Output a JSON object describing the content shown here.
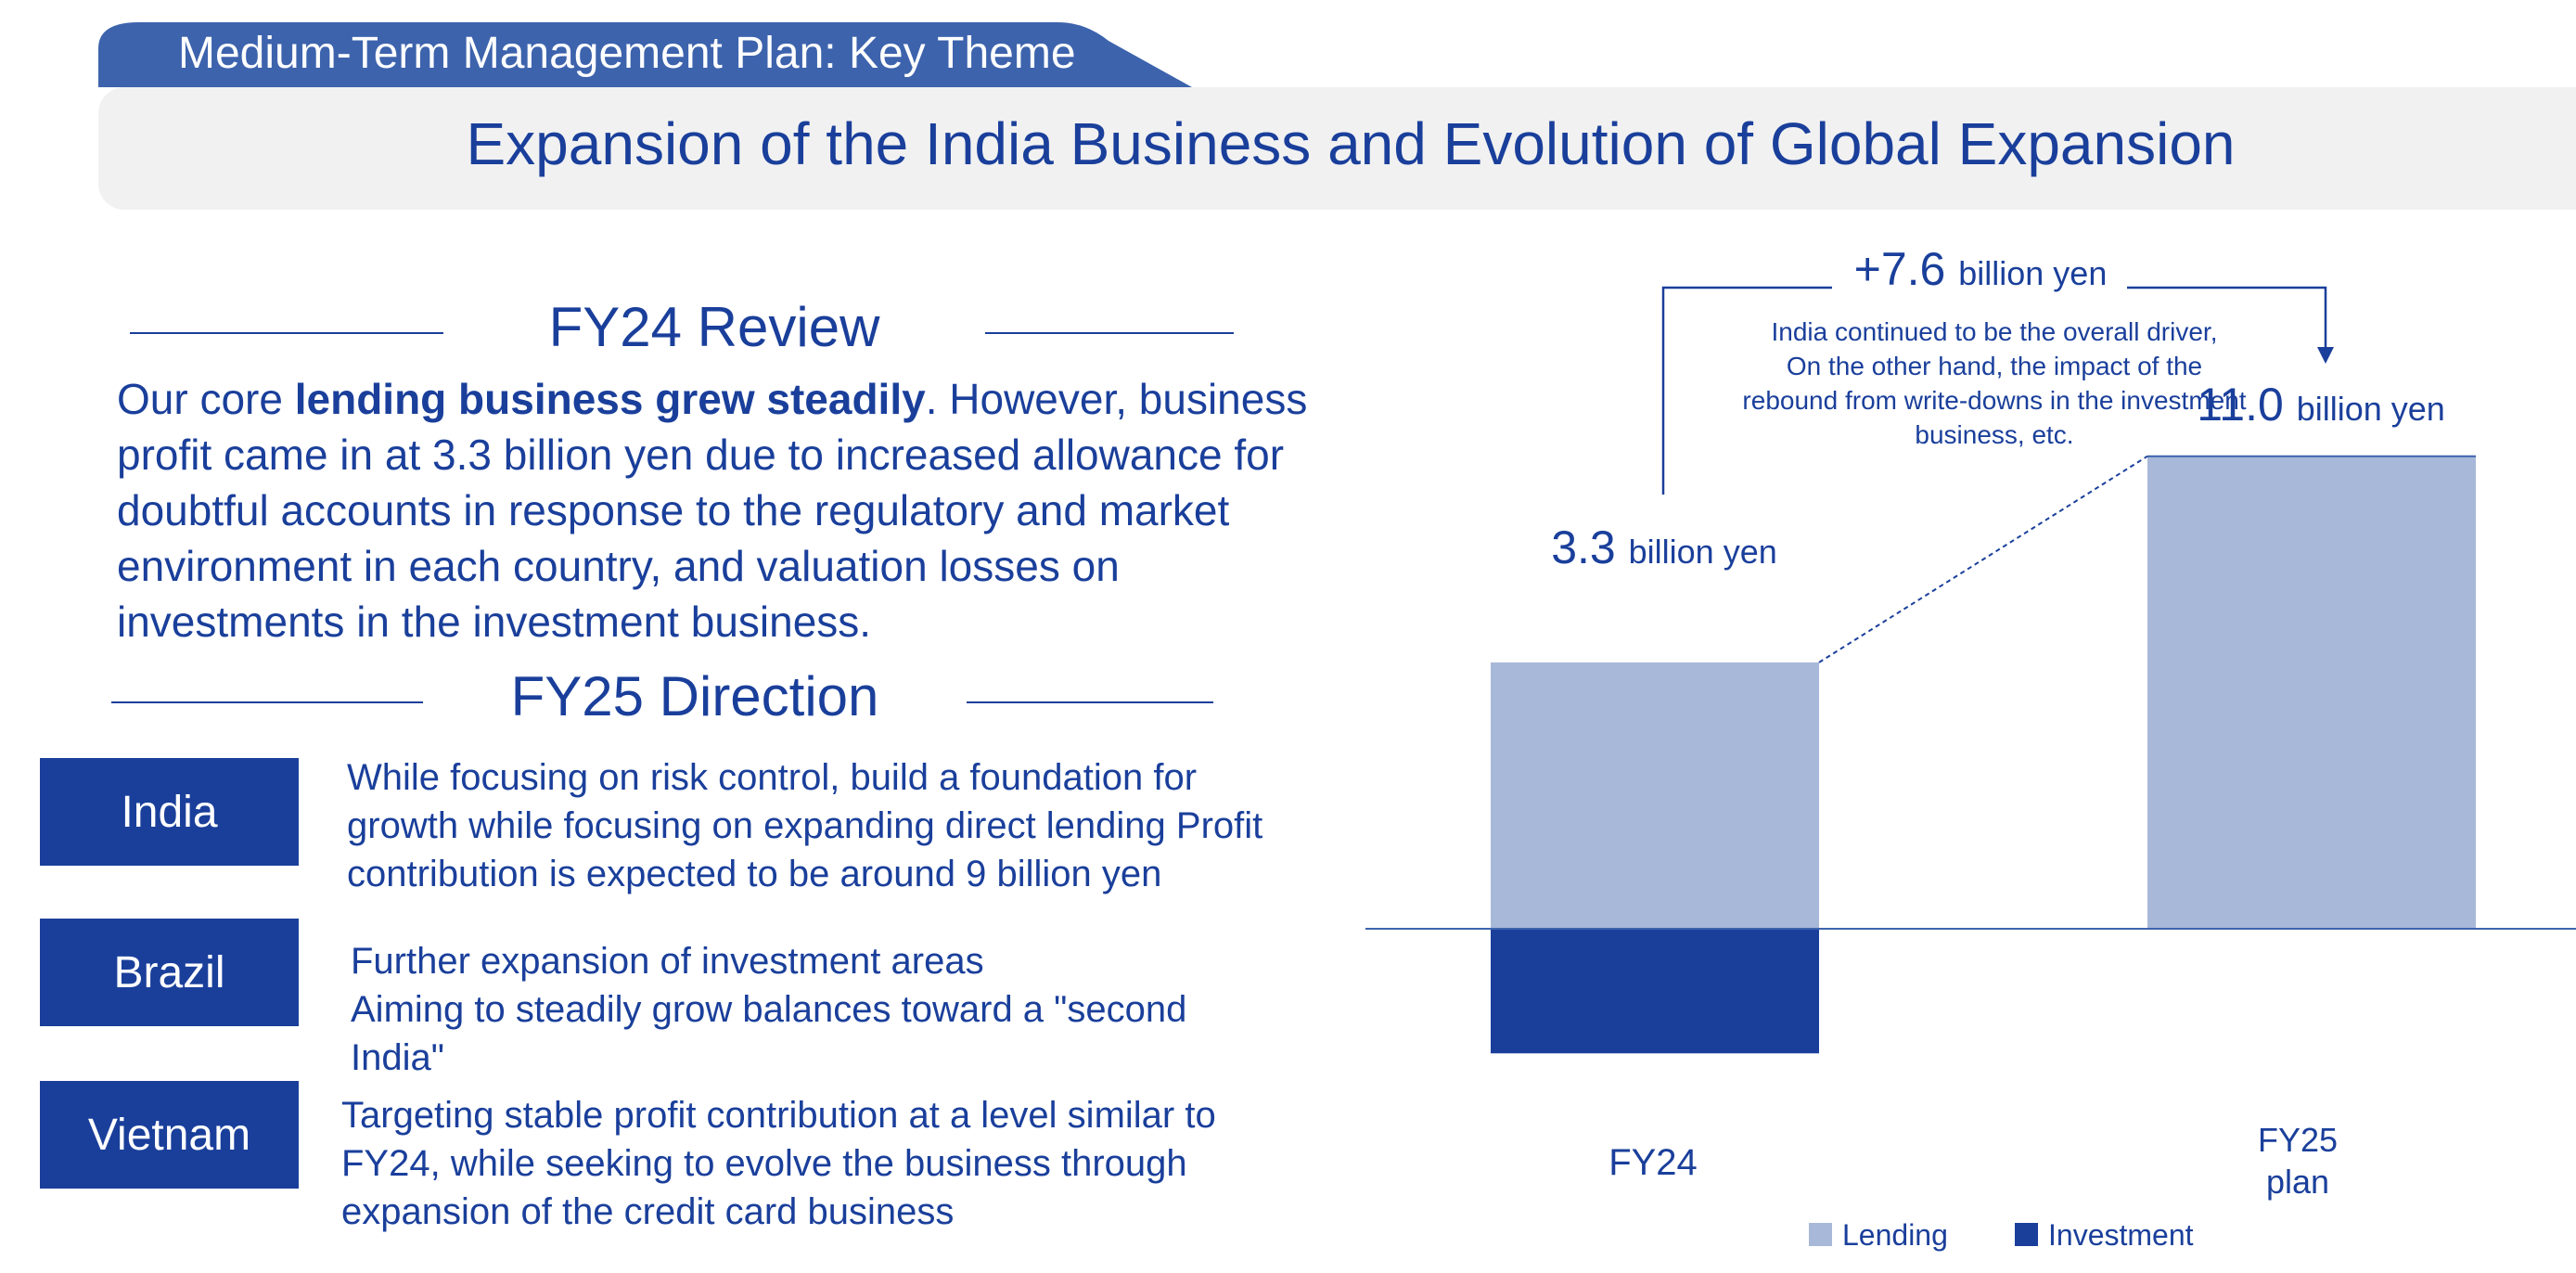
{
  "header": {
    "tab_label": "Medium-Term Management Plan: Key Theme",
    "title": "Expansion of the India Business and Evolution of Global Expansion",
    "colors": {
      "brand_blue": "#1a3f9b",
      "tab_blue": "#3d63ad",
      "band_gray": "#f1f1f1"
    }
  },
  "review": {
    "heading": "FY24 Review",
    "text_before": "Our core ",
    "text_bold": "lending business grew steadily",
    "text_after": ". However, business profit came in at 3.3 billion yen due to increased allowance for doubtful accounts in response to the regulatory and market environment in each country, and valuation losses on investments in the investment business."
  },
  "direction": {
    "heading": "FY25 Direction",
    "countries": [
      {
        "name": "India",
        "lines": [
          "While focusing on risk control, build a foundation for",
          "growth while focusing on expanding direct lending Profit",
          "contribution is expected to be around 9 billion yen"
        ]
      },
      {
        "name": "Brazil",
        "lines": [
          "Further expansion of investment areas",
          "Aiming to steadily grow balances toward a \"second",
          "India\""
        ]
      },
      {
        "name": "Vietnam",
        "lines": [
          "Targeting stable profit contribution at a level similar to",
          "FY24, while seeking to evolve the business through",
          "expansion of the credit card business"
        ]
      }
    ]
  },
  "chart_data": {
    "type": "bar",
    "stacked": true,
    "categories": [
      "FY24",
      "FY25 plan"
    ],
    "series": [
      {
        "name": "Lending",
        "values": [
          6.2,
          11.0
        ],
        "color": "#a8b8d8"
      },
      {
        "name": "Investment",
        "values": [
          -2.9,
          0
        ],
        "color": "#1a3f9b"
      }
    ],
    "totals": [
      {
        "number": "3.3",
        "unit": "billion yen"
      },
      {
        "number": "11.0",
        "unit": "billion yen"
      }
    ],
    "difference": {
      "number": "+7.6",
      "unit": "billion yen"
    },
    "annotation": "India continued to be the overall driver, On the other hand, the impact of the rebound from write-downs in the investment business, etc.",
    "legend_placement": "bottom",
    "ylim": [
      -2.9,
      11.0
    ]
  }
}
